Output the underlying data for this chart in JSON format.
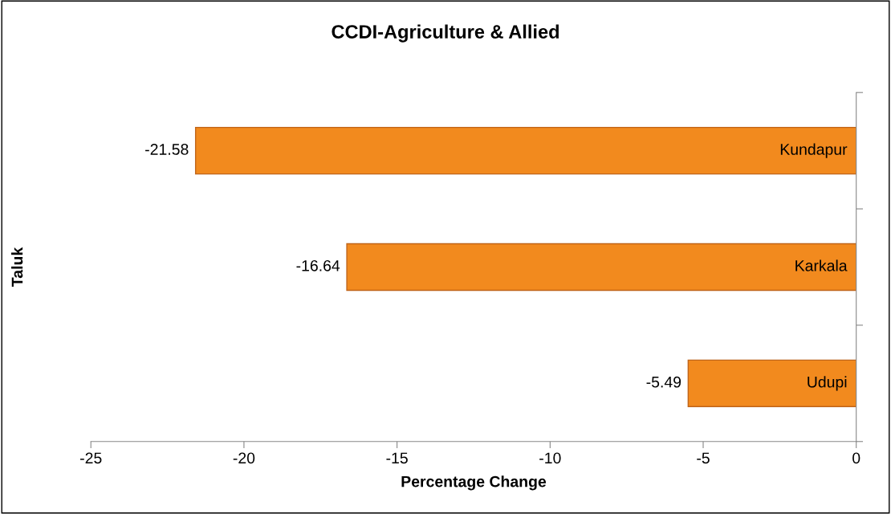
{
  "chart_data": {
    "type": "bar",
    "orientation": "horizontal",
    "title": "CCDI-Agriculture & Allied",
    "xlabel": "Percentage Change",
    "ylabel": "Taluk",
    "categories": [
      "Kundapur",
      "Karkala",
      "Udupi"
    ],
    "values": [
      -21.58,
      -16.64,
      -5.49
    ],
    "color": "#f28a1e",
    "xlim": [
      -25,
      0
    ],
    "xticks": [
      -25,
      -20,
      -15,
      -10,
      -5,
      0
    ],
    "data_labels": true,
    "grid": false,
    "legend": false
  }
}
